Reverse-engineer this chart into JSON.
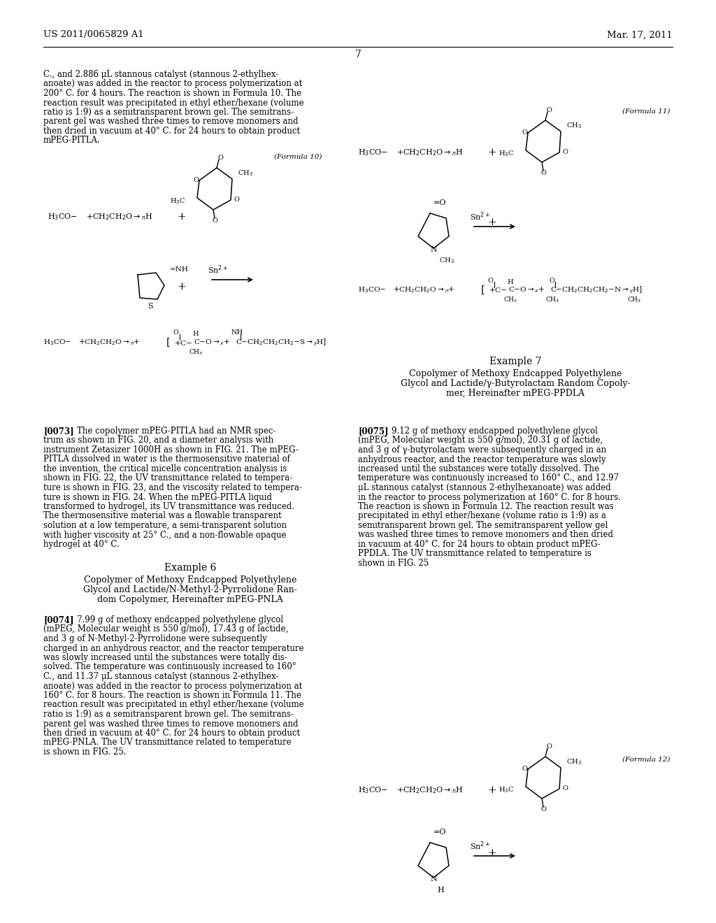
{
  "background_color": "#ffffff",
  "header_left": "US 2011/0065829 A1",
  "header_right": "Mar. 17, 2011",
  "page_number": "7",
  "body_text_col1_para1": [
    "C., and 2.886 μL stannous catalyst (stannous 2-ethylhex-",
    "anoate) was added in the reactor to process polymerization at",
    "200° C. for 4 hours. The reaction is shown in Formula 10. The",
    "reaction result was precipitated in ethyl ether/hexane (volume",
    "ratio is 1:9) as a semitransparent brown gel. The semitrans-",
    "parent gel was washed three times to remove monomers and",
    "then dried in vacuum at 40° C. for 24 hours to obtain product",
    "mPEG-PITLA."
  ],
  "body_text_col1_para2_tag": "[0073]",
  "body_text_col1_para2": [
    "The copolymer mPEG-PITLA had an NMR spec-",
    "trum as shown in FIG. 20, and a diameter analysis with",
    "instrument Zetasizer 1000H as shown in FIG. 21. The mPEG-",
    "PITLA dissolved in water is the thermosensitive material of",
    "the invention, the critical micelle concentration analysis is",
    "shown in FIG. 22, the UV transmittance related to tempera-",
    "ture is shown in FIG. 23, and the viscosity related to tempera-",
    "ture is shown in FIG. 24. When the mPEG-PITLA liquid",
    "transformed to hydrogel, its UV transmittance was reduced.",
    "The thermosensitive material was a flowable transparent",
    "solution at a low temperature, a semi-transparent solution",
    "with higher viscosity at 25° C., and a non-flowable opaque",
    "hydrogel at 40° C."
  ],
  "example6_title": "Example 6",
  "example6_sub": [
    "Copolymer of Methoxy Endcapped Polyethylene",
    "Glycol and Lactide/N-Methyl-2-Pyrrolidone Ran-",
    "dom Copolymer, Hereinafter mPEG-PNLA"
  ],
  "body_text_col1_para3_tag": "[0074]",
  "body_text_col1_para3": [
    "7.99 g of methoxy endcapped polyethylene glycol",
    "(mPEG, Molecular weight is 550 g/mol), 17.43 g of lactide,",
    "and 3 g of N-Methyl-2-Pyrrolidone were subsequently",
    "charged in an anhydrous reactor, and the reactor temperature",
    "was slowly increased until the substances were totally dis-",
    "solved. The temperature was continuously increased to 160°",
    "C., and 11.37 μL stannous catalyst (stannous 2-ethylhex-",
    "anoate) was added in the reactor to process polymerization at",
    "160° C. for 8 hours. The reaction is shown in Formula 11. The",
    "reaction result was precipitated in ethyl ether/hexane (volume",
    "ratio is 1:9) as a semitransparent brown gel. The semitrans-",
    "parent gel was washed three times to remove monomers and",
    "then dried in vacuum at 40° C. for 24 hours to obtain product",
    "mPEG-PNLA. The UV transmittance related to temperature",
    "is shown in FIG. 25."
  ],
  "formula10_label": "(Formula 10)",
  "formula11_label": "(Formula 11)",
  "formula12_label": "(Formula 12)",
  "example7_title": "Example 7",
  "example7_sub": [
    "Copolymer of Methoxy Endcapped Polyethylene",
    "Glycol and Lactide/γ-Butyrolactam Random Copoly-",
    "mer, Hereinafter mPEG-PPDLA"
  ],
  "body_text_col2_para1_tag": "[0075]",
  "body_text_col2_para1": [
    "9.12 g of methoxy endcapped polyethylene glycol",
    "(mPEG, Molecular weight is 550 g/mol), 20.31 g of lactide,",
    "and 3 g of γ-butyrolactam were subsequently charged in an",
    "anhydrous reactor, and the reactor temperature was slowly",
    "increased until the substances were totally dissolved. The",
    "temperature was continuously increased to 160° C., and 12.97",
    "μL stannous catalyst (stannous 2-ethylhexanoate) was added",
    "in the reactor to process polymerization at 160° C. for 8 hours.",
    "The reaction is shown in Formula 12. The reaction result was",
    "precipitated in ethyl ether/hexane (volume ratio is 1:9) as a",
    "semitransparent brown gel. The semitransparent yellow gel",
    "was washed three times to remove monomers and then dried",
    "in vacuum at 40° C. for 24 hours to obtain product mPEG-",
    "PPDLA. The UV transmittance related to temperature is",
    "shown in FIG. 25"
  ]
}
